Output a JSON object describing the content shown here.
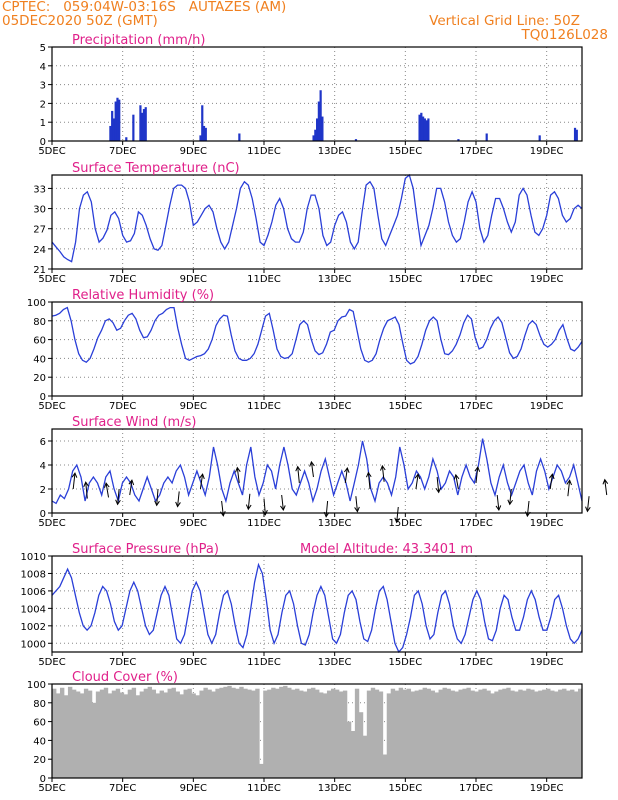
{
  "header": {
    "line1": "CPTEC:   059:04W-03:16S   AUTAZES (AM)",
    "line2": "05DEC2020 50Z (GMT)",
    "right1": "Vertical Grid Line: 50Z",
    "right2": "TQ0126L028"
  },
  "colors": {
    "header": "#f08020",
    "title": "#e0208a",
    "line": "#2a3fd8",
    "bar": "#1f35c8",
    "cloud": "#b0b0b0",
    "arrow": "#000000"
  },
  "chart_data": [
    {
      "type": "bar",
      "title": "Precipitation (mm/h)",
      "ylim": [
        0,
        5
      ],
      "yticks": [
        0,
        1,
        2,
        3,
        4,
        5
      ],
      "xticks": [
        "5DEC",
        "7DEC",
        "9DEC",
        "11DEC",
        "13DEC",
        "15DEC",
        "17DEC",
        "19DEC"
      ],
      "bars": [
        [
          1.65,
          0.8
        ],
        [
          1.7,
          1.6
        ],
        [
          1.75,
          1.2
        ],
        [
          1.8,
          2.1
        ],
        [
          1.85,
          2.3
        ],
        [
          1.9,
          2.2
        ],
        [
          2.1,
          0.2
        ],
        [
          2.3,
          1.4
        ],
        [
          2.5,
          1.9
        ],
        [
          2.55,
          1.5
        ],
        [
          2.6,
          1.7
        ],
        [
          2.65,
          1.8
        ],
        [
          4.2,
          0.3
        ],
        [
          4.25,
          1.9
        ],
        [
          4.3,
          0.8
        ],
        [
          4.35,
          0.7
        ],
        [
          5.3,
          0.4
        ],
        [
          7.4,
          0.3
        ],
        [
          7.45,
          0.6
        ],
        [
          7.5,
          1.2
        ],
        [
          7.55,
          2.1
        ],
        [
          7.6,
          2.7
        ],
        [
          7.65,
          1.3
        ],
        [
          8.6,
          0.1
        ],
        [
          10.4,
          1.4
        ],
        [
          10.45,
          1.5
        ],
        [
          10.5,
          1.3
        ],
        [
          10.55,
          1.2
        ],
        [
          10.6,
          1.1
        ],
        [
          10.65,
          1.2
        ],
        [
          11.5,
          0.1
        ],
        [
          12.3,
          0.4
        ],
        [
          13.8,
          0.3
        ],
        [
          14.8,
          0.7
        ],
        [
          14.85,
          0.6
        ]
      ]
    },
    {
      "type": "line",
      "title": "Surface Temperature (nC)",
      "ylim": [
        21,
        35
      ],
      "yticks": [
        21,
        24,
        27,
        30,
        33
      ],
      "xticks": [
        "5DEC",
        "7DEC",
        "9DEC",
        "11DEC",
        "13DEC",
        "15DEC",
        "17DEC",
        "19DEC"
      ],
      "values": [
        25.0,
        24.3,
        23.6,
        22.8,
        22.4,
        22.1,
        25.0,
        30.0,
        32.0,
        32.5,
        31.0,
        27.0,
        25.0,
        25.6,
        26.8,
        29.0,
        29.5,
        28.5,
        26.0,
        25.0,
        25.2,
        26.3,
        29.5,
        29.0,
        27.5,
        25.5,
        24.0,
        23.8,
        24.5,
        27.5,
        30.5,
        33.0,
        33.5,
        33.5,
        33.0,
        31.0,
        27.5,
        28.0,
        29.0,
        30.0,
        30.5,
        29.5,
        27.0,
        25.0,
        24.0,
        25.0,
        27.5,
        30.0,
        33.0,
        34.0,
        33.5,
        31.5,
        28.5,
        25.0,
        24.5,
        26.0,
        28.0,
        30.5,
        31.5,
        30.0,
        27.0,
        25.5,
        25.0,
        25.0,
        26.5,
        30.0,
        32.0,
        32.0,
        30.0,
        26.0,
        24.5,
        25.0,
        27.5,
        29.0,
        29.5,
        28.0,
        25.0,
        24.0,
        25.0,
        29.5,
        33.5,
        34.0,
        33.0,
        29.0,
        25.5,
        24.5,
        26.0,
        27.5,
        29.0,
        31.5,
        34.5,
        35.0,
        33.0,
        28.5,
        24.5,
        26.0,
        27.5,
        30.0,
        33.0,
        33.0,
        31.0,
        28.0,
        26.0,
        25.0,
        25.5,
        28.0,
        31.0,
        32.5,
        31.0,
        27.0,
        25.0,
        26.0,
        29.0,
        31.5,
        31.5,
        30.0,
        28.0,
        26.5,
        28.0,
        32.0,
        33.0,
        32.0,
        29.0,
        26.5,
        26.0,
        27.0,
        29.0,
        32.0,
        32.5,
        31.5,
        29.0,
        28.0,
        28.5,
        30.0,
        30.5,
        30.0
      ]
    },
    {
      "type": "line",
      "title": "Relative Humidity (%)",
      "ylim": [
        0,
        100
      ],
      "yticks": [
        0,
        20,
        40,
        60,
        80,
        100
      ],
      "xticks": [
        "5DEC",
        "7DEC",
        "9DEC",
        "11DEC",
        "13DEC",
        "15DEC",
        "17DEC",
        "19DEC"
      ],
      "values": [
        85,
        86,
        88,
        92,
        94,
        80,
        60,
        45,
        38,
        36,
        40,
        50,
        62,
        70,
        80,
        82,
        78,
        70,
        72,
        80,
        86,
        88,
        82,
        70,
        62,
        63,
        70,
        80,
        86,
        88,
        92,
        94,
        94,
        72,
        55,
        40,
        38,
        40,
        42,
        43,
        45,
        50,
        60,
        75,
        82,
        86,
        85,
        65,
        48,
        40,
        38,
        38,
        40,
        45,
        55,
        70,
        85,
        88,
        70,
        50,
        42,
        40,
        41,
        45,
        60,
        76,
        80,
        76,
        60,
        48,
        44,
        46,
        55,
        68,
        70,
        80,
        84,
        85,
        92,
        90,
        70,
        50,
        38,
        36,
        38,
        45,
        60,
        72,
        80,
        82,
        84,
        76,
        56,
        38,
        34,
        36,
        42,
        55,
        70,
        80,
        84,
        80,
        60,
        45,
        44,
        48,
        55,
        65,
        78,
        86,
        82,
        62,
        50,
        52,
        60,
        72,
        80,
        84,
        78,
        62,
        46,
        40,
        42,
        50,
        64,
        76,
        80,
        76,
        64,
        55,
        52,
        55,
        60,
        70,
        76,
        62,
        50,
        48,
        52,
        58
      ]
    },
    {
      "type": "line",
      "title": "Surface Wind (m/s)",
      "ylim": [
        0,
        7
      ],
      "yticks": [
        0,
        2,
        4,
        6
      ],
      "xticks": [
        "5DEC",
        "7DEC",
        "9DEC",
        "11DEC",
        "13DEC",
        "15DEC",
        "17DEC",
        "19DEC"
      ],
      "values": [
        1.0,
        0.8,
        1.5,
        1.2,
        2.0,
        3.5,
        4.0,
        3.0,
        1.0,
        2.5,
        3.0,
        2.5,
        1.5,
        3.0,
        3.5,
        2.0,
        1.0,
        2.5,
        3.0,
        2.5,
        1.5,
        1.0,
        2.0,
        3.0,
        2.0,
        1.0,
        1.5,
        2.5,
        3.0,
        2.5,
        3.5,
        4.0,
        3.0,
        1.5,
        2.5,
        3.5,
        2.5,
        1.5,
        3.0,
        5.5,
        4.0,
        2.0,
        1.0,
        2.5,
        3.5,
        2.5,
        1.5,
        4.0,
        5.5,
        3.0,
        1.5,
        2.5,
        4.0,
        3.5,
        2.0,
        4.0,
        5.5,
        4.0,
        2.0,
        1.5,
        2.5,
        3.5,
        2.5,
        1.0,
        2.0,
        3.5,
        4.5,
        3.0,
        1.5,
        2.5,
        3.5,
        2.5,
        1.0,
        2.5,
        4.0,
        6.0,
        4.5,
        2.0,
        1.0,
        2.5,
        3.0,
        2.5,
        1.5,
        3.0,
        5.5,
        4.0,
        2.0,
        2.5,
        3.5,
        3.0,
        2.0,
        3.0,
        4.5,
        3.5,
        2.0,
        2.5,
        3.5,
        3.0,
        1.5,
        3.0,
        4.0,
        3.0,
        2.5,
        4.0,
        6.2,
        4.5,
        2.5,
        1.5,
        3.0,
        4.0,
        2.5,
        1.5,
        2.5,
        3.5,
        4.0,
        2.5,
        1.5,
        3.5,
        4.5,
        3.5,
        2.0,
        3.0,
        4.0,
        3.5,
        2.5,
        3.0,
        4.0,
        2.5,
        1.0
      ],
      "arrows": [
        [
          0.6,
          2.0,
          4.0
        ],
        [
          1.0,
          1.2,
          4.5
        ],
        [
          1.6,
          1.3,
          2.6
        ],
        [
          1.9,
          2.0,
          -3.5
        ],
        [
          2.2,
          1.5,
          3.0
        ],
        [
          3.0,
          2.0,
          -4.5
        ],
        [
          3.6,
          1.8,
          -3.3
        ],
        [
          4.2,
          2.0,
          3.0
        ],
        [
          4.8,
          1.0,
          -3.0
        ],
        [
          5.3,
          2.5,
          3.5
        ],
        [
          5.6,
          1.6,
          -3.5
        ],
        [
          6.0,
          1.2,
          -4.2
        ],
        [
          6.5,
          1.5,
          -3.2
        ],
        [
          7.0,
          2.5,
          4.5
        ],
        [
          7.4,
          3.0,
          3.3
        ],
        [
          7.8,
          1.0,
          -3.8
        ],
        [
          8.3,
          2.5,
          3.2
        ],
        [
          8.6,
          1.4,
          -3.5
        ],
        [
          9.0,
          2.0,
          4.5
        ],
        [
          9.4,
          2.6,
          4.0
        ],
        [
          9.8,
          0.5,
          -3.5
        ],
        [
          10.3,
          2.0,
          3.0
        ],
        [
          10.9,
          3.0,
          -3.5
        ],
        [
          11.5,
          2.0,
          2.5
        ],
        [
          12.0,
          2.5,
          4.0
        ],
        [
          12.6,
          1.5,
          -3.2
        ],
        [
          13.0,
          2.0,
          -3.5
        ],
        [
          13.5,
          1.0,
          -3.3
        ],
        [
          14.1,
          2.0,
          3.0
        ],
        [
          14.6,
          1.4,
          4.0
        ],
        [
          15.2,
          1.4,
          -3.3
        ],
        [
          15.7,
          1.5,
          3.5
        ],
        [
          16.2,
          0.6,
          -3.5
        ]
      ]
    },
    {
      "type": "line",
      "title": "Surface Pressure (hPa)",
      "annotation": "Model Altitude: 43.3401 m",
      "ylim": [
        999,
        1010
      ],
      "yticks": [
        1000,
        1002,
        1004,
        1006,
        1008,
        1010
      ],
      "xticks": [
        "5DEC",
        "7DEC",
        "9DEC",
        "11DEC",
        "13DEC",
        "15DEC",
        "17DEC",
        "19DEC"
      ],
      "values": [
        1005.5,
        1006.0,
        1006.5,
        1007.5,
        1008.5,
        1007.5,
        1005.5,
        1003.5,
        1002.0,
        1001.5,
        1002.0,
        1003.5,
        1005.5,
        1006.5,
        1006.0,
        1004.5,
        1002.5,
        1001.5,
        1002.0,
        1004.0,
        1006.0,
        1007.0,
        1006.0,
        1004.0,
        1002.0,
        1001.0,
        1001.5,
        1003.5,
        1005.5,
        1006.5,
        1005.5,
        1003.0,
        1000.5,
        1000.0,
        1001.0,
        1003.5,
        1006.0,
        1007.0,
        1006.0,
        1003.5,
        1001.0,
        1000.0,
        1001.0,
        1003.5,
        1005.5,
        1006.0,
        1004.5,
        1002.0,
        1000.0,
        999.5,
        1001.0,
        1004.0,
        1007.0,
        1009.0,
        1008.0,
        1005.0,
        1001.5,
        1000.0,
        1001.0,
        1003.5,
        1005.5,
        1006.0,
        1004.5,
        1002.0,
        1000.0,
        999.8,
        1001.0,
        1003.5,
        1005.5,
        1006.5,
        1005.5,
        1003.0,
        1000.5,
        1000.0,
        1001.0,
        1003.5,
        1005.5,
        1006.0,
        1005.0,
        1002.5,
        1000.5,
        1000.2,
        1001.5,
        1004.0,
        1006.0,
        1006.5,
        1005.0,
        1002.5,
        1000.0,
        999.0,
        999.5,
        1001.0,
        1003.0,
        1005.5,
        1006.0,
        1004.5,
        1002.0,
        1000.5,
        1001.0,
        1003.5,
        1005.5,
        1006.0,
        1004.5,
        1002.0,
        1000.5,
        1000.0,
        1001.0,
        1003.0,
        1005.0,
        1006.0,
        1005.0,
        1002.5,
        1000.5,
        1000.3,
        1001.5,
        1004.0,
        1005.5,
        1005.0,
        1003.0,
        1001.5,
        1001.5,
        1003.0,
        1005.0,
        1006.0,
        1005.0,
        1003.0,
        1001.5,
        1001.5,
        1003.0,
        1005.0,
        1005.5,
        1004.0,
        1002.0,
        1000.5,
        1000.0,
        1000.5,
        1001.5
      ]
    },
    {
      "type": "area",
      "title": "Cloud Cover (%)",
      "ylim": [
        0,
        100
      ],
      "yticks": [
        0,
        20,
        40,
        60,
        80,
        100
      ],
      "xticks": [
        "5DEC",
        "7DEC",
        "9DEC",
        "11DEC",
        "13DEC",
        "15DEC",
        "17DEC",
        "19DEC"
      ],
      "values": [
        95,
        90,
        96,
        88,
        97,
        94,
        92,
        90,
        95,
        93,
        80,
        92,
        94,
        96,
        90,
        93,
        95,
        91,
        89,
        94,
        96,
        88,
        92,
        95,
        97,
        94,
        90,
        93,
        91,
        95,
        96,
        92,
        89,
        94,
        95,
        90,
        88,
        93,
        96,
        94,
        92,
        95,
        96,
        97,
        98,
        96,
        95,
        97,
        95,
        94,
        93,
        95,
        15,
        93,
        94,
        96,
        95,
        97,
        98,
        96,
        94,
        95,
        93,
        92,
        95,
        96,
        94,
        91,
        90,
        93,
        95,
        94,
        92,
        93,
        60,
        50,
        95,
        70,
        45,
        93,
        96,
        94,
        92,
        25,
        90,
        95,
        93,
        96,
        94,
        95,
        92,
        93,
        94,
        96,
        95,
        93,
        91,
        94,
        96,
        95,
        93,
        92,
        94,
        95,
        96,
        93,
        92,
        94,
        95,
        93,
        90,
        92,
        94,
        95,
        96,
        93,
        92,
        94,
        93,
        95,
        94,
        92,
        93,
        94,
        95,
        93,
        92,
        94,
        95,
        93,
        94,
        92,
        95
      ]
    }
  ]
}
